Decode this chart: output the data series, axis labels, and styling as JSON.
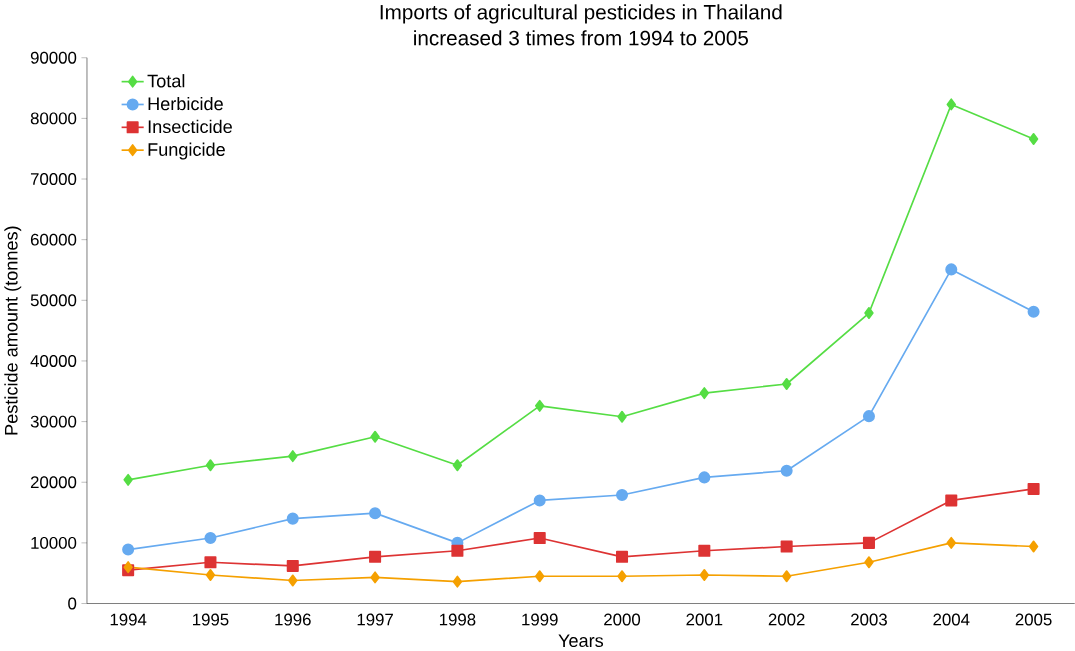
{
  "chart_data": {
    "type": "line",
    "title": "Imports of agricultural pesticides in Thailand\nincreased 3 times from 1994 to 2005",
    "xlabel": "Years",
    "ylabel": "Pesticide amount (tonnes)",
    "categories": [
      "1994",
      "1995",
      "1996",
      "1997",
      "1998",
      "1999",
      "2000",
      "2001",
      "2002",
      "2003",
      "2004",
      "2005"
    ],
    "ylim": [
      0,
      90000
    ],
    "yticks": [
      0,
      10000,
      20000,
      30000,
      40000,
      50000,
      60000,
      70000,
      80000,
      90000
    ],
    "grid": false,
    "legend": "top left",
    "series": [
      {
        "name": "Total",
        "color": "#55dd44",
        "marker": "diamond",
        "values": [
          20400,
          22800,
          24300,
          27500,
          22800,
          32600,
          30800,
          34700,
          36200,
          47900,
          82300,
          76600
        ]
      },
      {
        "name": "Herbicide",
        "color": "#66aaf0",
        "marker": "circle",
        "values": [
          8900,
          10800,
          14000,
          14900,
          10000,
          17000,
          17900,
          20800,
          21900,
          30900,
          55100,
          48100
        ]
      },
      {
        "name": "Insecticide",
        "color": "#dd3333",
        "marker": "square",
        "values": [
          5500,
          6800,
          6200,
          7700,
          8700,
          10800,
          7700,
          8700,
          9400,
          10000,
          17000,
          18900
        ]
      },
      {
        "name": "Fungicide",
        "color": "#f5a000",
        "marker": "diamond",
        "values": [
          6000,
          4700,
          3800,
          4300,
          3600,
          4500,
          4500,
          4700,
          4500,
          6800,
          10000,
          9400
        ]
      }
    ]
  }
}
